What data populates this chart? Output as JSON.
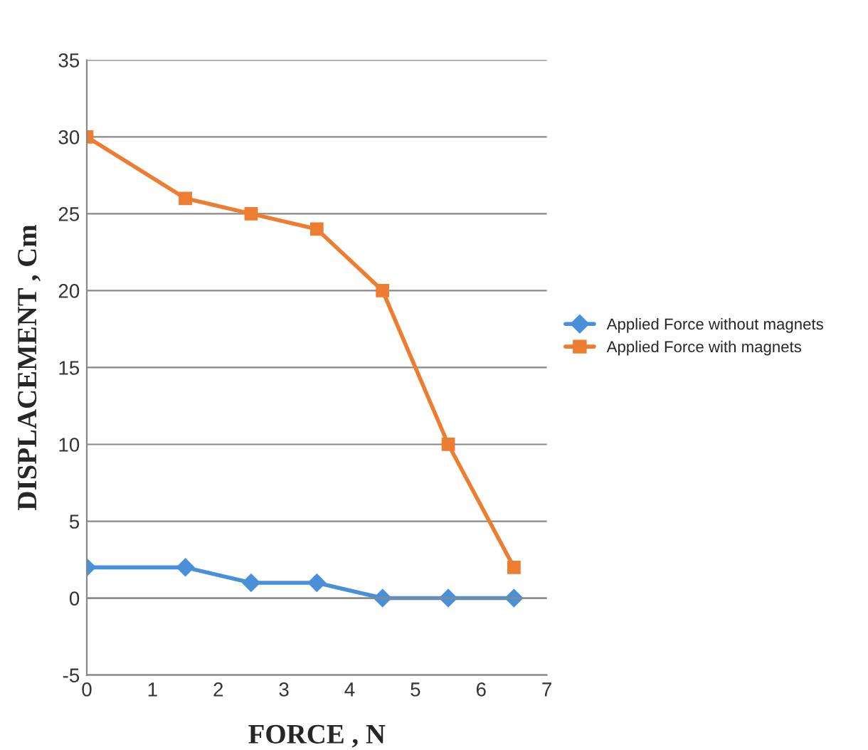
{
  "chart_data": {
    "type": "line",
    "xlabel": "FORCE , N",
    "ylabel": "DISPLACEMENT , Cm",
    "x": [
      0,
      1.5,
      2.5,
      3.5,
      4.5,
      5.5,
      6.5
    ],
    "series": [
      {
        "name": "Applied Force without magnets",
        "color": "#4a90d9",
        "values": [
          2,
          2,
          1,
          1,
          0,
          0,
          0
        ],
        "marker": "diamond"
      },
      {
        "name": "Applied Force with magnets",
        "color": "#ed7d31",
        "values": [
          30,
          26,
          25,
          24,
          20,
          10,
          2
        ],
        "marker": "square"
      }
    ],
    "xlim": [
      0,
      7
    ],
    "xticks": [
      0,
      1,
      2,
      3,
      4,
      5,
      6,
      7
    ],
    "ylim": [
      -5,
      35
    ],
    "yticks": [
      -5,
      0,
      5,
      10,
      15,
      20,
      25,
      30,
      35
    ],
    "grid": "y",
    "legend": "right",
    "line_style": "solid"
  }
}
